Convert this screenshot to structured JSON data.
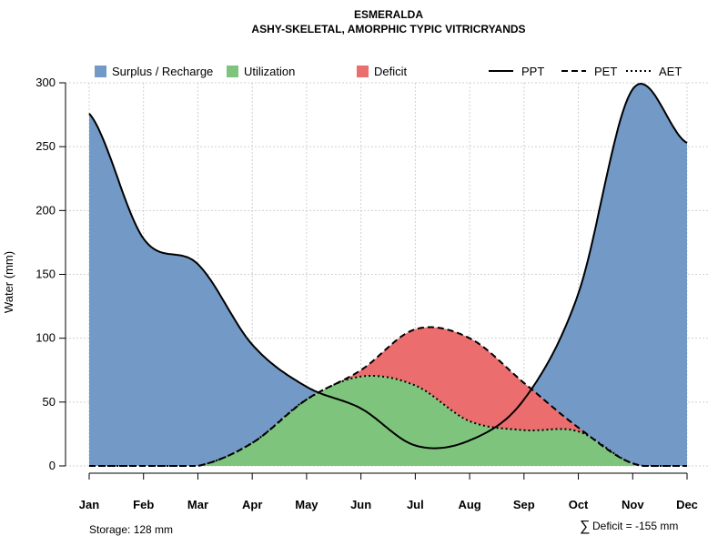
{
  "chart_data": {
    "type": "area",
    "title": "ESMERALDA",
    "subtitle": "ASHY-SKELETAL, AMORPHIC TYPIC VITRICRYANDS",
    "xlabel": "",
    "ylabel": "Water (mm)",
    "ylim": [
      0,
      300
    ],
    "yticks": [
      0,
      50,
      100,
      150,
      200,
      250,
      300
    ],
    "grid": true,
    "categories": [
      "Jan",
      "Feb",
      "Mar",
      "Apr",
      "May",
      "Jun",
      "Jul",
      "Aug",
      "Sep",
      "Oct",
      "Nov",
      "Dec"
    ],
    "series": [
      {
        "name": "PPT",
        "style": "solid",
        "values": [
          276,
          178,
          158,
          95,
          62,
          45,
          16,
          20,
          52,
          135,
          295,
          253
        ]
      },
      {
        "name": "PET",
        "style": "dashed",
        "values": [
          0,
          0,
          0,
          18,
          52,
          75,
          107,
          100,
          65,
          30,
          2,
          0
        ]
      },
      {
        "name": "AET",
        "style": "dotted",
        "values": [
          0,
          0,
          0,
          18,
          52,
          70,
          63,
          35,
          28,
          27,
          2,
          0
        ]
      }
    ],
    "fills": [
      {
        "name": "Surplus / Recharge",
        "color": "#7399C6"
      },
      {
        "name": "Utilization",
        "color": "#7FC47D"
      },
      {
        "name": "Deficit",
        "color": "#EC6D6E"
      }
    ],
    "legend_position": "top",
    "annotations": {
      "storage": "Storage: 128 mm",
      "deficit_symbol": "∑",
      "deficit": "Deficit = -155 mm"
    }
  }
}
